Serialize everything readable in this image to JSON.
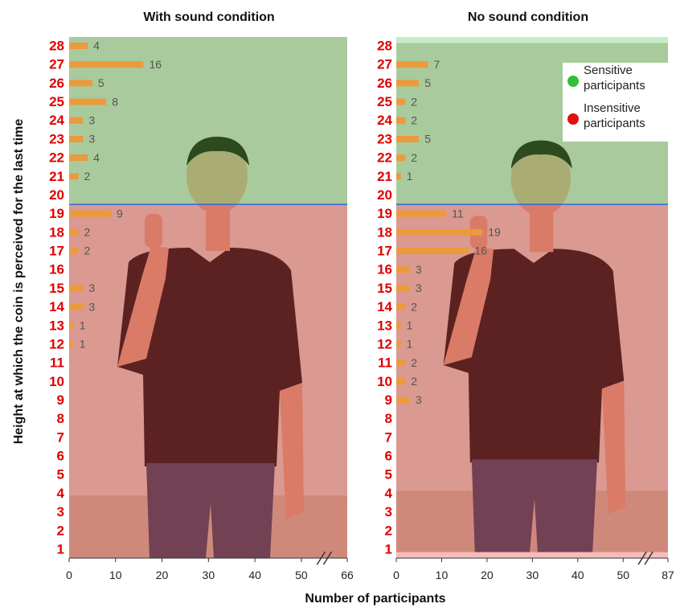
{
  "chart_data": [
    {
      "type": "bar",
      "orientation": "horizontal",
      "title": "With sound condition",
      "categories": [
        "1",
        "2",
        "3",
        "4",
        "5",
        "6",
        "7",
        "8",
        "9",
        "10",
        "11",
        "12",
        "13",
        "14",
        "15",
        "16",
        "17",
        "18",
        "19",
        "20",
        "21",
        "22",
        "23",
        "24",
        "25",
        "26",
        "27",
        "28"
      ],
      "values": [
        null,
        null,
        null,
        null,
        null,
        null,
        null,
        null,
        null,
        null,
        null,
        1,
        1,
        3,
        3,
        null,
        2,
        2,
        9,
        null,
        2,
        4,
        3,
        3,
        8,
        5,
        16,
        4
      ],
      "color": "#eb9a3c",
      "xlim": [
        0,
        66
      ],
      "xticks": [
        0,
        10,
        20,
        30,
        40,
        50,
        66
      ]
    },
    {
      "type": "bar",
      "orientation": "horizontal",
      "title": "No sound condition",
      "categories": [
        "1",
        "2",
        "3",
        "4",
        "5",
        "6",
        "7",
        "8",
        "9",
        "10",
        "11",
        "12",
        "13",
        "14",
        "15",
        "16",
        "17",
        "18",
        "19",
        "20",
        "21",
        "22",
        "23",
        "24",
        "25",
        "26",
        "27",
        "28"
      ],
      "values": [
        null,
        null,
        null,
        null,
        null,
        null,
        null,
        null,
        3,
        2,
        2,
        1,
        1,
        2,
        3,
        3,
        16,
        19,
        11,
        null,
        1,
        2,
        5,
        2,
        2,
        5,
        7,
        null
      ],
      "color": "#eb9a3c",
      "xlim": [
        0,
        87
      ],
      "xticks": [
        0,
        10,
        20,
        30,
        40,
        50,
        87
      ]
    }
  ],
  "x_label": "Number of participants",
  "y_label": "Height at which the coin is perceived for the last time",
  "legend": [
    {
      "name": "Sensitive participants",
      "color": "#2fbf3a",
      "from": 20,
      "to": 28
    },
    {
      "name": "Insensitive participants",
      "color": "#e01010",
      "from": 1,
      "to": 19
    }
  ]
}
